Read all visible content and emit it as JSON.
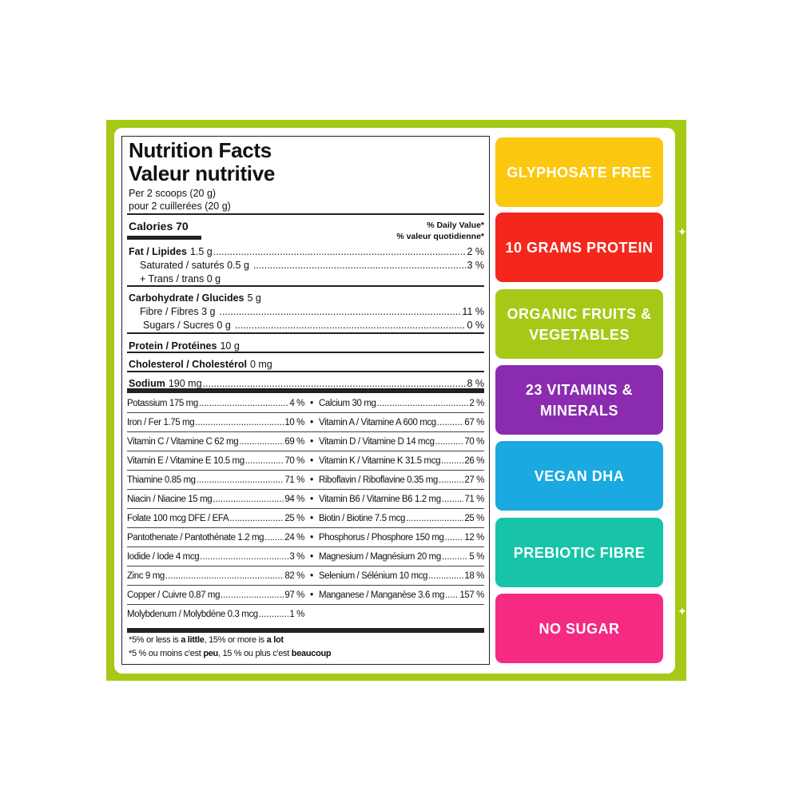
{
  "label": {
    "title_en": "Nutrition Facts",
    "title_fr": "Valeur nutritive",
    "serving_en": "Per 2 scoops (20 g)",
    "serving_fr": "pour 2 cuillerées (20 g)",
    "calories": "Calories 70",
    "dv_en": "% Daily Value*",
    "dv_fr": "% valeur quotidienne*",
    "rows": [
      {
        "name": "Fat / Lipides",
        "amount": "1.5 g",
        "dv": "2 %"
      },
      {
        "name": "Saturated / saturés 0.5 g",
        "amount": "",
        "dv": "3 %"
      },
      {
        "name": "+ Trans / trans 0 g",
        "amount": "",
        "dv": ""
      },
      {
        "name": "Carbohydrate / Glucides",
        "amount": "5 g",
        "dv": ""
      },
      {
        "name": "Fibre / Fibres 3 g",
        "amount": "",
        "dv": "11 %"
      },
      {
        "name": "Sugars / Sucres 0 g",
        "amount": "",
        "dv": "0 %"
      },
      {
        "name": "Protein / Protéines",
        "amount": "10 g",
        "dv": ""
      },
      {
        "name": "Cholesterol / Cholestérol",
        "amount": "0 mg",
        "dv": ""
      },
      {
        "name": "Sodium",
        "amount": "190 mg",
        "dv": "8 %"
      }
    ],
    "minerals": [
      [
        {
          "n": "Potassium 175 mg",
          "v": "4 %"
        },
        {
          "n": "Calcium 30 mg",
          "v": "2 %"
        }
      ],
      [
        {
          "n": "Iron / Fer 1.75 mg",
          "v": "10 %"
        },
        {
          "n": "Vitamin A / Vitamine A 600 mcg",
          "v": "67 %"
        }
      ],
      [
        {
          "n": "Vitamin C / Vitamine C 62 mg",
          "v": "69 %"
        },
        {
          "n": "Vitamin D / Vitamine D 14 mcg",
          "v": "70 %"
        }
      ],
      [
        {
          "n": "Vitamin E / Vitamine E 10.5 mg",
          "v": "70 %"
        },
        {
          "n": "Vitamin K / Vitamine K 31.5 mcg",
          "v": "26 %"
        }
      ],
      [
        {
          "n": "Thiamine 0.85 mg",
          "v": "71 %"
        },
        {
          "n": "Riboflavin / Riboflavine 0.35 mg",
          "v": "27 %"
        }
      ],
      [
        {
          "n": "Niacin / Niacine 15 mg",
          "v": "94 %"
        },
        {
          "n": "Vitamin B6 / Vitamine B6 1.2 mg",
          "v": "71 %"
        }
      ],
      [
        {
          "n": "Folate 100 mcg DFE / EFA",
          "v": "25 %"
        },
        {
          "n": "Biotin / Biotine 7.5 mcg",
          "v": "25 %"
        }
      ],
      [
        {
          "n": "Pantothenate / Pantothénate 1.2 mg",
          "v": "24 %"
        },
        {
          "n": "Phosphorus / Phosphore 150 mg",
          "v": "12 %"
        }
      ],
      [
        {
          "n": "Iodide / Iode 4 mcg",
          "v": "3 %"
        },
        {
          "n": "Magnesium / Magnésium 20 mg",
          "v": "5 %"
        }
      ],
      [
        {
          "n": "Zinc 9 mg",
          "v": "82 %"
        },
        {
          "n": "Selenium / Sélénium 10 mcg",
          "v": "18 %"
        }
      ],
      [
        {
          "n": "Copper / Cuivre 0.87 mg",
          "v": "97 %"
        },
        {
          "n": "Manganese / Manganèse 3.6 mg",
          "v": "157 %"
        }
      ],
      [
        {
          "n": "Molybdenum / Molybdéne 0.3 mcg",
          "v": "1 %"
        }
      ]
    ],
    "foot_en": [
      "*5% or less is ",
      "a little",
      ", 15% or more is ",
      "a lot"
    ],
    "foot_fr": [
      "*5 % ou moins c'est ",
      "peu",
      ", 15 % ou plus c'est ",
      "beaucoup"
    ]
  },
  "badges": [
    {
      "text": "GLYPHOSATE FREE",
      "color": "#fbc80f"
    },
    {
      "text": "10 GRAMS PROTEIN",
      "color": "#f5271c"
    },
    {
      "text": "ORGANIC FRUITS & VEGETABLES",
      "color": "#a6c917"
    },
    {
      "text": "23 VITAMINS & MINERALS",
      "color": "#8a2bb0"
    },
    {
      "text": "VEGAN DHA",
      "color": "#1aa9e0"
    },
    {
      "text": "PREBIOTIC FIBRE",
      "color": "#18c4a8"
    },
    {
      "text": "NO SUGAR",
      "color": "#f42a83"
    }
  ],
  "colors": {
    "frame": "#a6c917"
  }
}
